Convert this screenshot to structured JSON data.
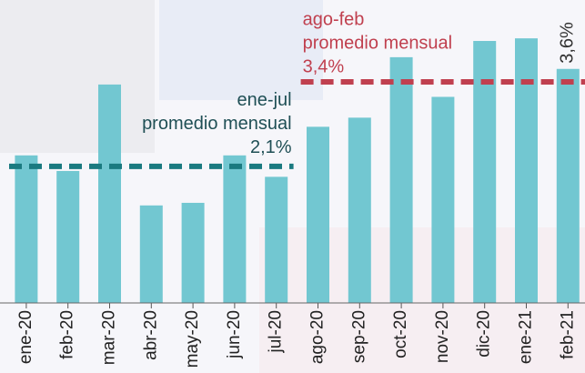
{
  "chart_data": {
    "type": "bar",
    "categories": [
      "ene-20",
      "feb-20",
      "mar-20",
      "abr-20",
      "may-20",
      "jun-20",
      "jul-20",
      "ago-20",
      "sep-20",
      "oct-20",
      "nov-20",
      "dic-20",
      "ene-21",
      "feb-21"
    ],
    "values": [
      2.27,
      2.03,
      3.36,
      1.5,
      1.54,
      2.27,
      1.94,
      2.71,
      2.85,
      3.78,
      3.17,
      4.03,
      4.07,
      3.6
    ],
    "value_labels": [
      null,
      null,
      null,
      null,
      null,
      null,
      null,
      null,
      null,
      null,
      null,
      null,
      null,
      "3,6%"
    ],
    "color": "#72c7d1",
    "ylim": [
      0,
      4.66
    ],
    "annotations": [
      {
        "lines": [
          "ene-jul",
          "promedio mensual"
        ],
        "value_label": "2,1%",
        "value": 2.1,
        "start": "ene-20",
        "end": "jul-20",
        "color": "#1a7a80"
      },
      {
        "lines": [
          "ago-feb",
          "promedio mensual"
        ],
        "value_label": "3,4%",
        "value": 3.4,
        "start": "ago-20",
        "end": "feb-21",
        "color": "#c0404f"
      }
    ]
  }
}
